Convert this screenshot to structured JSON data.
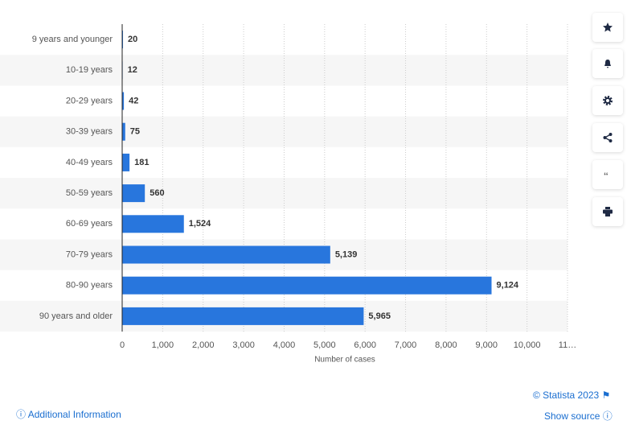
{
  "chart_data": {
    "type": "hbar",
    "categories": [
      "9 years and younger",
      "10-19 years",
      "20-29 years",
      "30-39 years",
      "40-49 years",
      "50-59 years",
      "60-69 years",
      "70-79 years",
      "80-90 years",
      "90 years and older"
    ],
    "values": [
      20,
      12,
      42,
      75,
      181,
      560,
      1524,
      5139,
      9124,
      5965
    ],
    "value_labels": [
      "20",
      "12",
      "42",
      "75",
      "181",
      "560",
      "1,524",
      "5,139",
      "9,124",
      "5,965"
    ],
    "color": "#2876dd",
    "x_label": "Number of cases",
    "xlim": [
      0,
      11000
    ],
    "xticks": [
      0,
      {
        "value": 1000,
        "label": "1,000"
      },
      {
        "value": 2000,
        "label": "2,000"
      },
      {
        "value": 3000,
        "label": "3,000"
      },
      {
        "value": 4000,
        "label": "4,000"
      },
      {
        "value": 5000,
        "label": "5,000"
      },
      {
        "value": 6000,
        "label": "6,000"
      },
      {
        "value": 7000,
        "label": "7,000"
      },
      {
        "value": 8000,
        "label": "8,000"
      },
      {
        "value": 9000,
        "label": "9,000"
      },
      {
        "value": 10000,
        "label": "10,000"
      },
      {
        "value": 11000,
        "label": "11…"
      }
    ],
    "grid": true
  },
  "footer": {
    "copyright": "© Statista 2023",
    "additional": "Additional Information",
    "source": "Show source"
  }
}
